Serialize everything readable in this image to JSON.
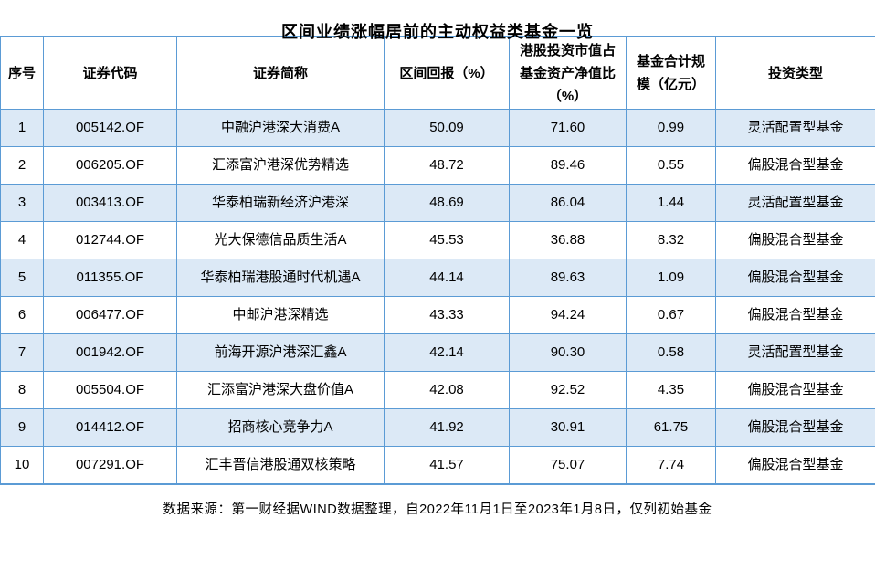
{
  "title": "区间业绩涨幅居前的主动权益类基金一览",
  "footer": "数据来源：第一财经据WIND数据整理，自2022年11月1日至2023年1月8日，仅列初始基金",
  "colors": {
    "border": "#5B9BD5",
    "row_alt": "#DCE9F6",
    "text": "#000000"
  },
  "chart_data": {
    "type": "table",
    "title": "区间业绩涨幅居前的主动权益类基金一览",
    "columns": [
      "序号",
      "证券代码",
      "证券简称",
      "区间回报（%）",
      "港股投资市值占基金资产净值比（%）",
      "基金合计规模（亿元）",
      "投资类型"
    ],
    "rows": [
      [
        "1",
        "005142.OF",
        "中融沪港深大消费A",
        "50.09",
        "71.60",
        "0.99",
        "灵活配置型基金"
      ],
      [
        "2",
        "006205.OF",
        "汇添富沪港深优势精选",
        "48.72",
        "89.46",
        "0.55",
        "偏股混合型基金"
      ],
      [
        "3",
        "003413.OF",
        "华泰柏瑞新经济沪港深",
        "48.69",
        "86.04",
        "1.44",
        "灵活配置型基金"
      ],
      [
        "4",
        "012744.OF",
        "光大保德信品质生活A",
        "45.53",
        "36.88",
        "8.32",
        "偏股混合型基金"
      ],
      [
        "5",
        "011355.OF",
        "华泰柏瑞港股通时代机遇A",
        "44.14",
        "89.63",
        "1.09",
        "偏股混合型基金"
      ],
      [
        "6",
        "006477.OF",
        "中邮沪港深精选",
        "43.33",
        "94.24",
        "0.67",
        "偏股混合型基金"
      ],
      [
        "7",
        "001942.OF",
        "前海开源沪港深汇鑫A",
        "42.14",
        "90.30",
        "0.58",
        "灵活配置型基金"
      ],
      [
        "8",
        "005504.OF",
        "汇添富沪港深大盘价值A",
        "42.08",
        "92.52",
        "4.35",
        "偏股混合型基金"
      ],
      [
        "9",
        "014412.OF",
        "招商核心竞争力A",
        "41.92",
        "30.91",
        "61.75",
        "偏股混合型基金"
      ],
      [
        "10",
        "007291.OF",
        "汇丰晋信港股通双核策略",
        "41.57",
        "75.07",
        "7.74",
        "偏股混合型基金"
      ]
    ]
  }
}
